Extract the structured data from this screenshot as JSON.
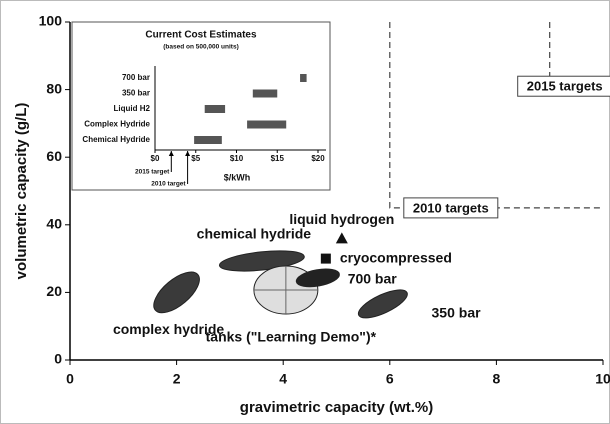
{
  "chart_data": [
    {
      "type": "scatter",
      "xlabel": "gravimetric capacity (wt.%)",
      "ylabel": "volumetric capacity (g/L)",
      "xlim": [
        0,
        10
      ],
      "ylim": [
        0,
        100
      ],
      "xticks": [
        0,
        2,
        4,
        6,
        8,
        10
      ],
      "yticks": [
        0,
        20,
        40,
        60,
        80,
        100
      ],
      "regions": [
        {
          "name": "complex hydride",
          "x": 2,
          "y": 20,
          "dx": 0.52,
          "dy": 3.8,
          "color": "#3a3a3a"
        },
        {
          "name": "chemical hydride",
          "x": 3.6,
          "y": 29.3,
          "dx": 0.8,
          "dy": 2.7,
          "color": "#3a3a3a"
        },
        {
          "name": "tanks (\"Learning Demo\")*",
          "x": 4.05,
          "y": 20.7,
          "dx": 0.6,
          "dy": 7.1,
          "color": "#dedede"
        },
        {
          "name": "700 bar",
          "x": 4.65,
          "y": 24.3,
          "dx": 0.41,
          "dy": 2.4,
          "color": "#222222"
        },
        {
          "name": "350 bar",
          "x": 5.87,
          "y": 16.6,
          "dx": 0.5,
          "dy": 2.7,
          "color": "#3a3a3a"
        }
      ],
      "points": [
        {
          "name": "liquid hydrogen",
          "x": 5.1,
          "y": 36,
          "marker": "triangle"
        },
        {
          "name": "cryocompressed",
          "x": 4.8,
          "y": 30,
          "marker": "square"
        }
      ],
      "targets": [
        {
          "name": "2010 targets",
          "x": 6,
          "y": 45
        },
        {
          "name": "2015 targets",
          "x": 9,
          "y": 81
        }
      ]
    },
    {
      "type": "range-bar",
      "title": "Current Cost Estimates",
      "subtitle": "(based on 500,000 units)",
      "xlabel": "$/kWh",
      "xlim": [
        0,
        20
      ],
      "xticks": [
        {
          "value": 0,
          "label": "$0"
        },
        {
          "value": 5,
          "label": "$5"
        },
        {
          "value": 10,
          "label": "$10"
        },
        {
          "value": 15,
          "label": "$15"
        },
        {
          "value": 20,
          "label": "$20"
        }
      ],
      "categories": [
        "700 bar",
        "350 bar",
        "Liquid H2",
        "Complex Hydride",
        "Chemical Hydride"
      ],
      "low": [
        17.8,
        12,
        6.1,
        11.3,
        4.8
      ],
      "high": [
        18.6,
        15,
        8.6,
        16.1,
        8.2
      ],
      "color": "#555555",
      "targets": [
        {
          "name": "2015 target",
          "x": 2
        },
        {
          "name": "2010 target",
          "x": 4
        }
      ]
    }
  ]
}
